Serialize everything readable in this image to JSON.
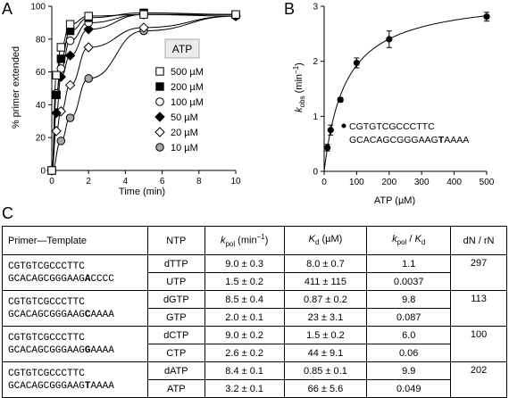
{
  "panels": {
    "a": "A",
    "b": "B",
    "c": "C"
  },
  "chart_data": [
    {
      "type": "line",
      "panel": "A",
      "xlabel": "Time (min)",
      "ylabel": "% primer extended",
      "xlim": [
        0,
        10
      ],
      "ylim": [
        0,
        100
      ],
      "xticks": [
        0,
        2,
        4,
        6,
        8,
        10
      ],
      "yticks": [
        0,
        20,
        40,
        60,
        80,
        100
      ],
      "legend_title": "ATP",
      "legend_position": "right",
      "series": [
        {
          "name": "500 µM",
          "marker": "square-open",
          "x": [
            0,
            0.25,
            0.5,
            1,
            2,
            5,
            10
          ],
          "y": [
            0,
            58,
            75,
            89,
            94,
            95,
            95
          ]
        },
        {
          "name": "200 µM",
          "marker": "square-filled",
          "x": [
            0,
            0.25,
            0.5,
            1,
            2,
            5,
            10
          ],
          "y": [
            0,
            46,
            68,
            85,
            93,
            96,
            95
          ]
        },
        {
          "name": "100 µM",
          "marker": "circle-open",
          "x": [
            0,
            0.25,
            0.5,
            1,
            2,
            5,
            10
          ],
          "y": [
            0,
            47,
            62,
            79,
            90,
            95,
            95
          ]
        },
        {
          "name": "50 µM",
          "marker": "diamond-filled",
          "x": [
            0,
            0.25,
            0.5,
            1,
            2,
            5,
            10
          ],
          "y": [
            0,
            35,
            57,
            70,
            86,
            95,
            94
          ]
        },
        {
          "name": "20 µM",
          "marker": "diamond-open",
          "x": [
            0,
            0.25,
            0.5,
            1,
            2,
            5,
            10
          ],
          "y": [
            0,
            24,
            36,
            52,
            75,
            87,
            94
          ]
        },
        {
          "name": "10 µM",
          "marker": "circle-gray",
          "x": [
            0,
            0.5,
            1,
            2,
            5,
            10
          ],
          "y": [
            0,
            18,
            32,
            56,
            85,
            94
          ]
        }
      ]
    },
    {
      "type": "scatter",
      "panel": "B",
      "xlabel": "ATP (µM)",
      "ylabel_main": "k",
      "ylabel_sub": "obs",
      "ylabel_unit": " (min",
      "ylabel_sup": "−1",
      "ylabel_end": ")",
      "xlim": [
        0,
        500
      ],
      "ylim": [
        0,
        3
      ],
      "xticks": [
        0,
        100,
        200,
        300,
        400,
        500
      ],
      "yticks": [
        0,
        1,
        2,
        3
      ],
      "x": [
        10,
        20,
        50,
        100,
        200,
        500
      ],
      "y": [
        0.43,
        0.75,
        1.3,
        1.97,
        2.4,
        2.81
      ],
      "error": [
        0.06,
        0.09,
        0.04,
        0.09,
        0.15,
        0.08
      ],
      "fit": {
        "kpol": 3.2,
        "kd": 66
      },
      "annotation_top": "CGTGTCGCCCTTC",
      "annotation_bottom_pre": "GCACAGCGGGAAG",
      "annotation_bottom_bold": "T",
      "annotation_bottom_post": "AAAA"
    }
  ],
  "table": {
    "headers": {
      "primer": "Primer—Template",
      "ntp": "NTP",
      "kpol": "k",
      "kpol_sub": "pol",
      "kpol_unit": " (min",
      "kpol_sup": "−1",
      "kpol_end": ")",
      "kd": "K",
      "kd_sub": "d",
      "kd_unit": " (µM)",
      "ratio_a": "k",
      "ratio_a_sub": "pol",
      "ratio_mid": " / ",
      "ratio_b": "K",
      "ratio_b_sub": "d",
      "dnrn": "dN / rN"
    },
    "rows": [
      {
        "seq_top": "CGTGTCGCCCTTC",
        "seq_pre": "GCACAGCGGGAAG",
        "seq_bold": "A",
        "seq_post": "CCCC",
        "dnrn": "297",
        "r1": {
          "ntp": "dTTP",
          "kpol": "9.0 ± 0.3",
          "kd": "8.0 ± 0.7",
          "ratio": "1.1"
        },
        "r2": {
          "ntp": "UTP",
          "kpol": "1.5 ± 0.2",
          "kd": "411 ± 115",
          "ratio": "0.0037"
        }
      },
      {
        "seq_top": "CGTGTCGCCCTTC",
        "seq_pre": "GCACAGCGGGAAG",
        "seq_bold": "C",
        "seq_post": "AAAA",
        "dnrn": "113",
        "r1": {
          "ntp": "dGTP",
          "kpol": "8.5 ± 0.4",
          "kd": "0.87 ± 0.2",
          "ratio": "9.8"
        },
        "r2": {
          "ntp": "GTP",
          "kpol": "2.0 ± 0.1",
          "kd": "23 ± 3.1",
          "ratio": "0.087"
        }
      },
      {
        "seq_top": "CGTGTCGCCCTTC",
        "seq_pre": "GCACAGCGGGAAG",
        "seq_bold": "G",
        "seq_post": "AAAA",
        "dnrn": "100",
        "r1": {
          "ntp": "dCTP",
          "kpol": "9.0 ± 0.2",
          "kd": "1.5 ± 0.2",
          "ratio": "6.0"
        },
        "r2": {
          "ntp": "CTP",
          "kpol": "2.6 ± 0.2",
          "kd": "44 ± 9.1",
          "ratio": "0.06"
        }
      },
      {
        "seq_top": "CGTGTCGCCCTTC",
        "seq_pre": "GCACAGCGGGAAG",
        "seq_bold": "T",
        "seq_post": "AAAA",
        "dnrn": "202",
        "r1": {
          "ntp": "dATP",
          "kpol": "8.4 ± 0.1",
          "kd": "0.85 ± 0.1",
          "ratio": "9.9"
        },
        "r2": {
          "ntp": "ATP",
          "kpol": "3.2 ± 0.1",
          "kd": "66 ± 5.6",
          "ratio": "0.049"
        }
      }
    ]
  }
}
